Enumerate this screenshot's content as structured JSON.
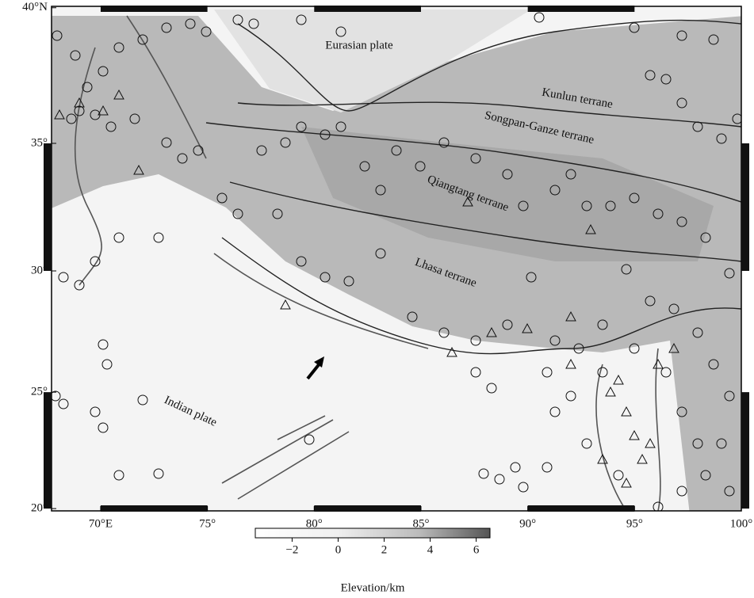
{
  "map": {
    "lonlim": [
      67.7,
      100
    ],
    "latlim": [
      19.9,
      40.05
    ],
    "lon_ticks": [
      {
        "value": 70,
        "label": "70°E"
      },
      {
        "value": 75,
        "label": "75°"
      },
      {
        "value": 80,
        "label": "80°"
      },
      {
        "value": 85,
        "label": "85°"
      },
      {
        "value": 90,
        "label": "90°"
      },
      {
        "value": 95,
        "label": "95°"
      },
      {
        "value": 100,
        "label": "100°"
      }
    ],
    "lat_ticks": [
      {
        "value": 20,
        "label": "20°"
      },
      {
        "value": 25,
        "label": "25°"
      },
      {
        "value": 30,
        "label": "30°"
      },
      {
        "value": 35,
        "label": "35°"
      },
      {
        "value": 40,
        "label": "40°N"
      }
    ]
  },
  "labels": {
    "eurasian": "Eurasian plate",
    "kunlun": "Kunlun terrane",
    "songpan": "Songpan-Ganze terrane",
    "qiangtang": "Qiangtang terrane",
    "lhasa": "Lhasa terrane",
    "indian": "Indian plate"
  },
  "colorbar": {
    "title": "Elevation/km",
    "lim": [
      -3.6,
      6.6
    ],
    "ticks": [
      {
        "value": -2,
        "label": "−2"
      },
      0,
      2,
      4,
      6
    ]
  }
}
